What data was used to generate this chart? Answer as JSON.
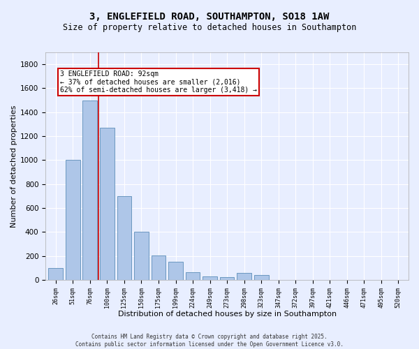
{
  "title_line1": "3, ENGLEFIELD ROAD, SOUTHAMPTON, SO18 1AW",
  "title_line2": "Size of property relative to detached houses in Southampton",
  "xlabel": "Distribution of detached houses by size in Southampton",
  "ylabel": "Number of detached properties",
  "categories": [
    "26sqm",
    "51sqm",
    "76sqm",
    "100sqm",
    "125sqm",
    "150sqm",
    "175sqm",
    "199sqm",
    "224sqm",
    "249sqm",
    "273sqm",
    "298sqm",
    "323sqm",
    "347sqm",
    "372sqm",
    "397sqm",
    "421sqm",
    "446sqm",
    "471sqm",
    "495sqm",
    "520sqm"
  ],
  "values": [
    100,
    1000,
    1500,
    1270,
    700,
    400,
    205,
    155,
    65,
    30,
    25,
    60,
    40,
    0,
    0,
    0,
    0,
    0,
    0,
    0,
    0
  ],
  "bar_color": "#aec6e8",
  "bar_edge_color": "#5b8db8",
  "vline_color": "#cc0000",
  "annotation_text": "3 ENGLEFIELD ROAD: 92sqm\n← 37% of detached houses are smaller (2,016)\n62% of semi-detached houses are larger (3,418) →",
  "annotation_box_color": "#ffffff",
  "annotation_box_edge": "#cc0000",
  "ylim": [
    0,
    1900
  ],
  "yticks": [
    0,
    200,
    400,
    600,
    800,
    1000,
    1200,
    1400,
    1600,
    1800
  ],
  "bg_color": "#e8eeff",
  "grid_color": "#ffffff",
  "footer_text": "Contains HM Land Registry data © Crown copyright and database right 2025.\nContains public sector information licensed under the Open Government Licence v3.0.",
  "title_fontsize": 10,
  "subtitle_fontsize": 8.5,
  "axis_label_fontsize": 8
}
